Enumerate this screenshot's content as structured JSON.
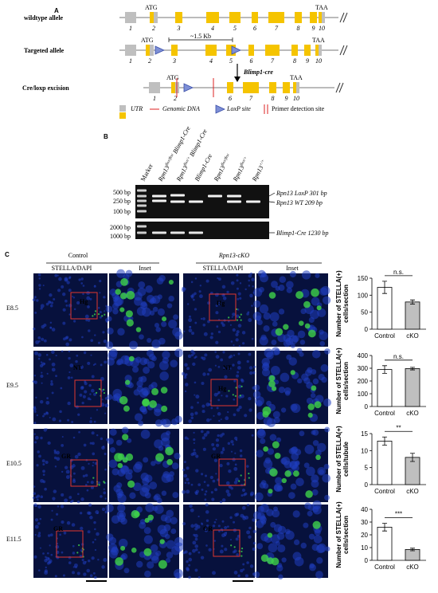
{
  "panel_a": {
    "label": "A",
    "rows": [
      {
        "name": "wildtype allele",
        "start": "ATG",
        "end": "TAA",
        "exons": [
          "1",
          "2",
          "3",
          "4",
          "5",
          "6",
          "7",
          "8",
          "9",
          "10"
        ]
      },
      {
        "name": "Targeted allele",
        "start": "ATG",
        "end": "TAA",
        "exons": [
          "1",
          "2",
          "3",
          "4",
          "5",
          "6",
          "7",
          "8",
          "9",
          "10"
        ]
      },
      {
        "name": "Cre/loxp excision",
        "start": "ATG",
        "end": "TAA",
        "exons": [
          "1",
          "2",
          "6",
          "7",
          "8",
          "9",
          "10"
        ]
      }
    ],
    "distance": "~1.5 Kb",
    "arrow_label": "Blimp1-cre",
    "legend": [
      "UTR",
      "Genomic DNA",
      "LoxP site",
      "Primer detection site"
    ]
  },
  "panel_b": {
    "label": "B",
    "lanes": [
      {
        "gene": "Marker",
        "sup": "",
        "suffix": ""
      },
      {
        "gene": "Rpn13",
        "sup": "flox/flox",
        "suffix": "Blimp1-Cre"
      },
      {
        "gene": "Rpn13",
        "sup": "flox/+",
        "suffix": "Blimp1-Cre"
      },
      {
        "gene": "Blimp1-Cre",
        "sup": "",
        "suffix": ""
      },
      {
        "gene": "Rpn13",
        "sup": "flox/flox",
        "suffix": ""
      },
      {
        "gene": "Rpn13",
        "sup": "flox/+",
        "suffix": ""
      },
      {
        "gene": "Rpn13",
        "sup": "+/+",
        "suffix": ""
      }
    ],
    "ladder": [
      "500 bp",
      "250 bp",
      "100 bp",
      "2000 bp",
      "1000 bp"
    ],
    "bands": [
      "Rpn13  LoxP  301 bp",
      "Rpn13 WT 209 bp",
      "Blimp1-Cre 1230 bp"
    ]
  },
  "panel_c": {
    "label": "C",
    "groups": [
      "Control",
      "Rpn13-cKO"
    ],
    "stain": "STELLA/DAPI",
    "inset": "Inset",
    "rows": [
      {
        "stage": "E8.5",
        "control_tags": [
          "Hg"
        ],
        "cko_tags": [
          "Hg"
        ]
      },
      {
        "stage": "E9.5",
        "control_tags": [
          "NT"
        ],
        "cko_tags": [
          "NT",
          "Hg"
        ]
      },
      {
        "stage": "E10.5",
        "control_tags": [
          "GR"
        ],
        "cko_tags": [
          "GR"
        ]
      },
      {
        "stage": "E11.5",
        "control_tags": [
          "GR"
        ],
        "cko_tags": [
          "GR"
        ]
      }
    ]
  },
  "chart_data": [
    {
      "type": "bar",
      "y_label": [
        "Number of STELLA(+)",
        "cells/section"
      ],
      "categories": [
        "Control",
        "cKO"
      ],
      "values": [
        123,
        80
      ],
      "errors": [
        18,
        6
      ],
      "colors": [
        "#ffffff",
        "#bfbfbf"
      ],
      "significance": "n.s.",
      "ylim": [
        0,
        150
      ],
      "yticks": [
        0,
        50,
        100,
        150
      ]
    },
    {
      "type": "bar",
      "y_label": [
        "Number of STELLA(+)",
        "cells/section"
      ],
      "categories": [
        "Control",
        "cKO"
      ],
      "values": [
        290,
        297
      ],
      "errors": [
        30,
        10
      ],
      "colors": [
        "#ffffff",
        "#bfbfbf"
      ],
      "significance": "n.s.",
      "ylim": [
        0,
        400
      ],
      "yticks": [
        0,
        100,
        200,
        300,
        400
      ]
    },
    {
      "type": "bar",
      "y_label": [
        "Number of STELLA(+)",
        "cells/tubule"
      ],
      "categories": [
        "Control",
        "cKO"
      ],
      "values": [
        12.8,
        8
      ],
      "errors": [
        1.2,
        1.2
      ],
      "colors": [
        "#ffffff",
        "#bfbfbf"
      ],
      "significance": "**",
      "ylim": [
        0,
        15
      ],
      "yticks": [
        0,
        5,
        10,
        15
      ]
    },
    {
      "type": "bar",
      "y_label": [
        "Number of STELLA(+)",
        "cells/section"
      ],
      "categories": [
        "Control",
        "cKO"
      ],
      "values": [
        26,
        8.5
      ],
      "errors": [
        3,
        1
      ],
      "colors": [
        "#ffffff",
        "#bfbfbf"
      ],
      "significance": "***",
      "ylim": [
        0,
        40
      ],
      "yticks": [
        0,
        10,
        20,
        30,
        40
      ]
    }
  ]
}
